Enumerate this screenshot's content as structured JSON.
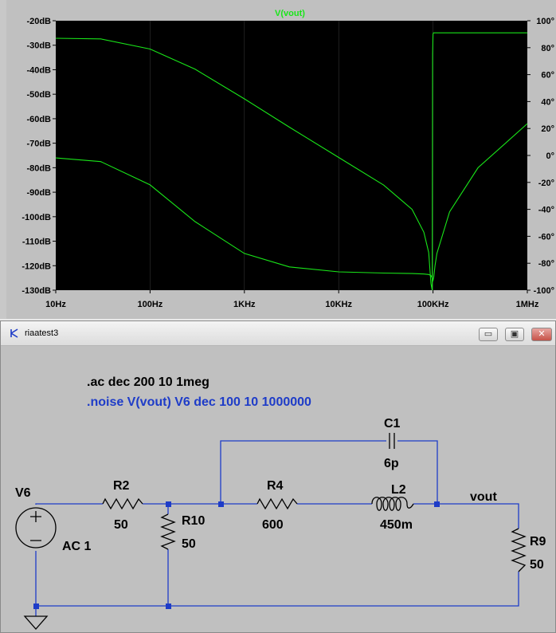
{
  "plot": {
    "title": "V(vout)",
    "left_axis_ticks": [
      "-20dB",
      "-30dB",
      "-40dB",
      "-50dB",
      "-60dB",
      "-70dB",
      "-80dB",
      "-90dB",
      "-100dB",
      "-110dB",
      "-120dB",
      "-130dB"
    ],
    "right_axis_ticks": [
      "100°",
      "80°",
      "60°",
      "40°",
      "20°",
      "0°",
      "-20°",
      "-40°",
      "-60°",
      "-80°",
      "-100°"
    ],
    "x_axis_ticks": [
      "10Hz",
      "100Hz",
      "1KHz",
      "10KHz",
      "100KHz",
      "1MHz"
    ],
    "colors": {
      "background": "#000000",
      "trace": "#19e619",
      "grid": "#333333"
    }
  },
  "chart_data": {
    "type": "line",
    "title": "V(vout)",
    "xlabel": "",
    "ylabel": "",
    "x_scale": "log",
    "xlim": [
      10,
      1000000
    ],
    "ylim_left": [
      -130,
      -20
    ],
    "ylim_right": [
      -100,
      100
    ],
    "series": [
      {
        "axis": "magnitude",
        "x": [
          10,
          30,
          100,
          300,
          1000,
          3000,
          10000,
          30000,
          60000,
          80000,
          90000,
          95000,
          98000,
          100000,
          102000,
          105000,
          110000,
          150000,
          300000,
          1000000
        ],
        "values": [
          -76,
          -77.5,
          -87,
          -102,
          -115,
          -120.5,
          -122.5,
          -123,
          -123.2,
          -123.4,
          -123.6,
          -124,
          -125,
          -126,
          -124.5,
          -120,
          -115,
          -98,
          -80,
          -62
        ]
      },
      {
        "axis": "phase",
        "x": [
          10,
          30,
          100,
          300,
          1000,
          3000,
          10000,
          30000,
          60000,
          80000,
          90000,
          95000,
          98000,
          99000,
          100000,
          101000,
          105000,
          300000,
          1000000
        ],
        "values": [
          87,
          86.5,
          79,
          64,
          42,
          21,
          -1.5,
          -22,
          -40,
          -57,
          -72,
          -95,
          -100,
          75,
          90,
          91,
          91,
          91,
          91
        ]
      }
    ]
  },
  "schematic_window": {
    "title": "riaatest3",
    "buttons": {
      "minimize": "▭",
      "restore": "▣",
      "close": "✕"
    },
    "directives": {
      "ac": ".ac dec 200 10 1meg",
      "noise": ".noise V(vout) V6 dec 100 10 1000000"
    },
    "components": {
      "v6": {
        "name": "V6",
        "value": "AC 1"
      },
      "r2": {
        "name": "R2",
        "value": "50"
      },
      "r10": {
        "name": "R10",
        "value": "50"
      },
      "r4": {
        "name": "R4",
        "value": "600"
      },
      "c1": {
        "name": "C1",
        "value": "6p"
      },
      "l2": {
        "name": "L2",
        "value": "450m"
      },
      "r9": {
        "name": "R9",
        "value": "50"
      }
    },
    "net_labels": {
      "vout": "vout"
    },
    "colors": {
      "wire": "#1e3cc8",
      "ac_directive": "#000000",
      "noise_directive": "#1e3cc8"
    }
  }
}
